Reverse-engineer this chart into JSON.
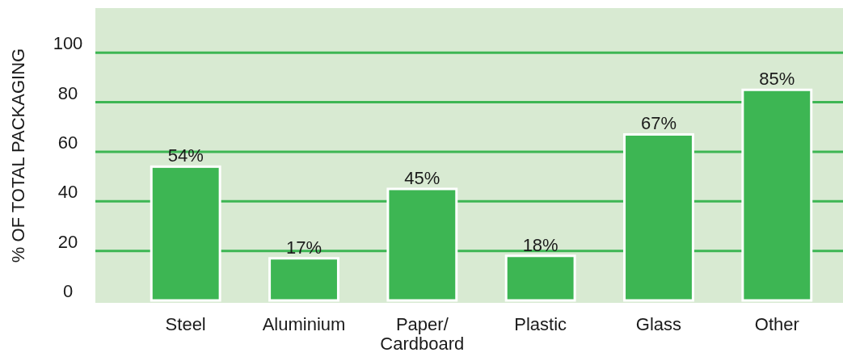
{
  "chart_data": {
    "type": "bar",
    "ylabel": "% OF TOTAL PACKAGING",
    "categories": [
      "Steel",
      "Aluminium",
      "Paper/Cardboard",
      "Plastic",
      "Glass",
      "Other"
    ],
    "values": [
      54,
      17,
      45,
      18,
      67,
      85
    ],
    "value_labels": [
      "54%",
      "17%",
      "45%",
      "18%",
      "67%",
      "85%"
    ],
    "color": "#3db653",
    "ylim": [
      0,
      118
    ],
    "yticks": [
      0,
      20,
      40,
      60,
      80,
      100
    ],
    "grid": "y"
  }
}
